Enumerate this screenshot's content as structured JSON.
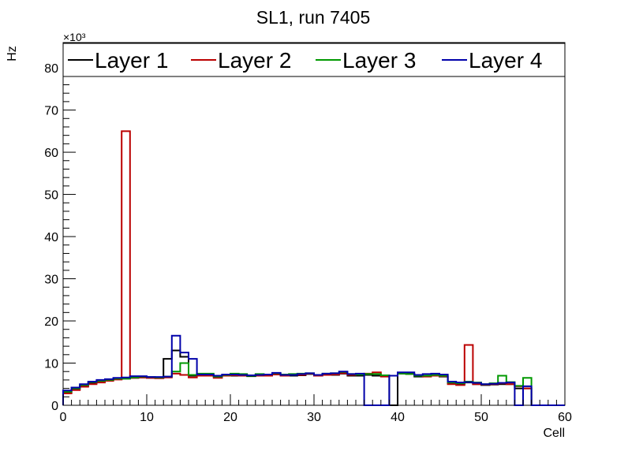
{
  "chart_data": {
    "type": "histogram-step",
    "title": "SL1, run 7405",
    "xlabel": "Cell",
    "ylabel": "Hz",
    "y_multiplier_label": "×10³",
    "xlim": [
      0,
      60
    ],
    "ylim": [
      0,
      86
    ],
    "x_ticks": [
      0,
      10,
      20,
      30,
      40,
      50,
      60
    ],
    "y_ticks": [
      0,
      10,
      20,
      30,
      40,
      50,
      60,
      70,
      80
    ],
    "bin_width": 1,
    "legend_position": "top",
    "series": [
      {
        "name": "Layer 1",
        "color": "#000000",
        "values": [
          3.0,
          3.8,
          4.5,
          5.2,
          5.6,
          6.0,
          6.2,
          6.3,
          6.5,
          6.6,
          6.5,
          6.5,
          11.0,
          13.0,
          11.5,
          7.0,
          7.2,
          7.0,
          6.8,
          7.0,
          7.0,
          7.1,
          6.9,
          7.0,
          7.1,
          7.5,
          7.0,
          7.0,
          7.1,
          7.4,
          7.0,
          7.3,
          7.2,
          7.5,
          7.0,
          7.0,
          7.2,
          7.0,
          7.0,
          0.0,
          7.6,
          7.5,
          6.8,
          7.0,
          7.0,
          6.8,
          5.2,
          5.0,
          5.4,
          5.0,
          4.8,
          4.9,
          5.0,
          5.0,
          4.0,
          4.0
        ]
      },
      {
        "name": "Layer 2",
        "color": "#bb0000",
        "values": [
          2.8,
          3.6,
          4.4,
          5.0,
          5.4,
          5.8,
          6.1,
          65.0,
          6.5,
          6.6,
          6.5,
          6.4,
          6.6,
          7.5,
          7.2,
          6.6,
          7.0,
          7.0,
          6.5,
          7.0,
          7.1,
          7.0,
          7.0,
          7.0,
          7.0,
          7.3,
          7.0,
          7.2,
          7.2,
          7.5,
          7.0,
          7.2,
          7.3,
          7.6,
          7.2,
          7.4,
          7.5,
          7.8,
          6.8,
          7.0,
          7.5,
          7.4,
          7.0,
          6.8,
          7.0,
          6.9,
          5.0,
          4.8,
          14.3,
          5.0,
          4.9,
          5.0,
          5.2,
          5.0,
          4.5,
          4.0
        ]
      },
      {
        "name": "Layer 3",
        "color": "#009900",
        "values": [
          3.2,
          4.0,
          4.8,
          5.5,
          5.8,
          6.0,
          6.3,
          6.3,
          6.6,
          6.8,
          6.7,
          6.6,
          6.8,
          8.0,
          10.0,
          7.2,
          7.5,
          7.5,
          6.8,
          7.2,
          7.5,
          7.4,
          7.0,
          7.4,
          7.3,
          7.6,
          7.3,
          7.4,
          7.5,
          7.6,
          7.2,
          7.5,
          7.6,
          7.9,
          7.4,
          7.3,
          7.4,
          7.4,
          7.1,
          7.0,
          7.5,
          7.4,
          7.0,
          7.0,
          7.2,
          7.0,
          5.4,
          5.2,
          5.6,
          5.4,
          5.0,
          5.2,
          7.0,
          5.5,
          4.6,
          6.5
        ]
      },
      {
        "name": "Layer 4",
        "color": "#0000aa",
        "values": [
          3.5,
          4.2,
          5.0,
          5.6,
          6.0,
          6.2,
          6.5,
          6.6,
          6.9,
          6.9,
          6.7,
          6.7,
          6.8,
          16.5,
          12.5,
          11.0,
          7.3,
          7.3,
          7.0,
          7.3,
          7.3,
          7.2,
          7.1,
          7.2,
          7.3,
          7.7,
          7.2,
          7.2,
          7.4,
          7.6,
          7.2,
          7.5,
          7.6,
          8.0,
          7.4,
          7.5,
          0.0,
          0.0,
          0.0,
          7.0,
          7.8,
          7.8,
          7.2,
          7.4,
          7.5,
          7.3,
          5.6,
          5.4,
          5.5,
          5.3,
          5.0,
          5.1,
          5.3,
          5.4,
          0.0,
          4.5
        ]
      }
    ]
  }
}
